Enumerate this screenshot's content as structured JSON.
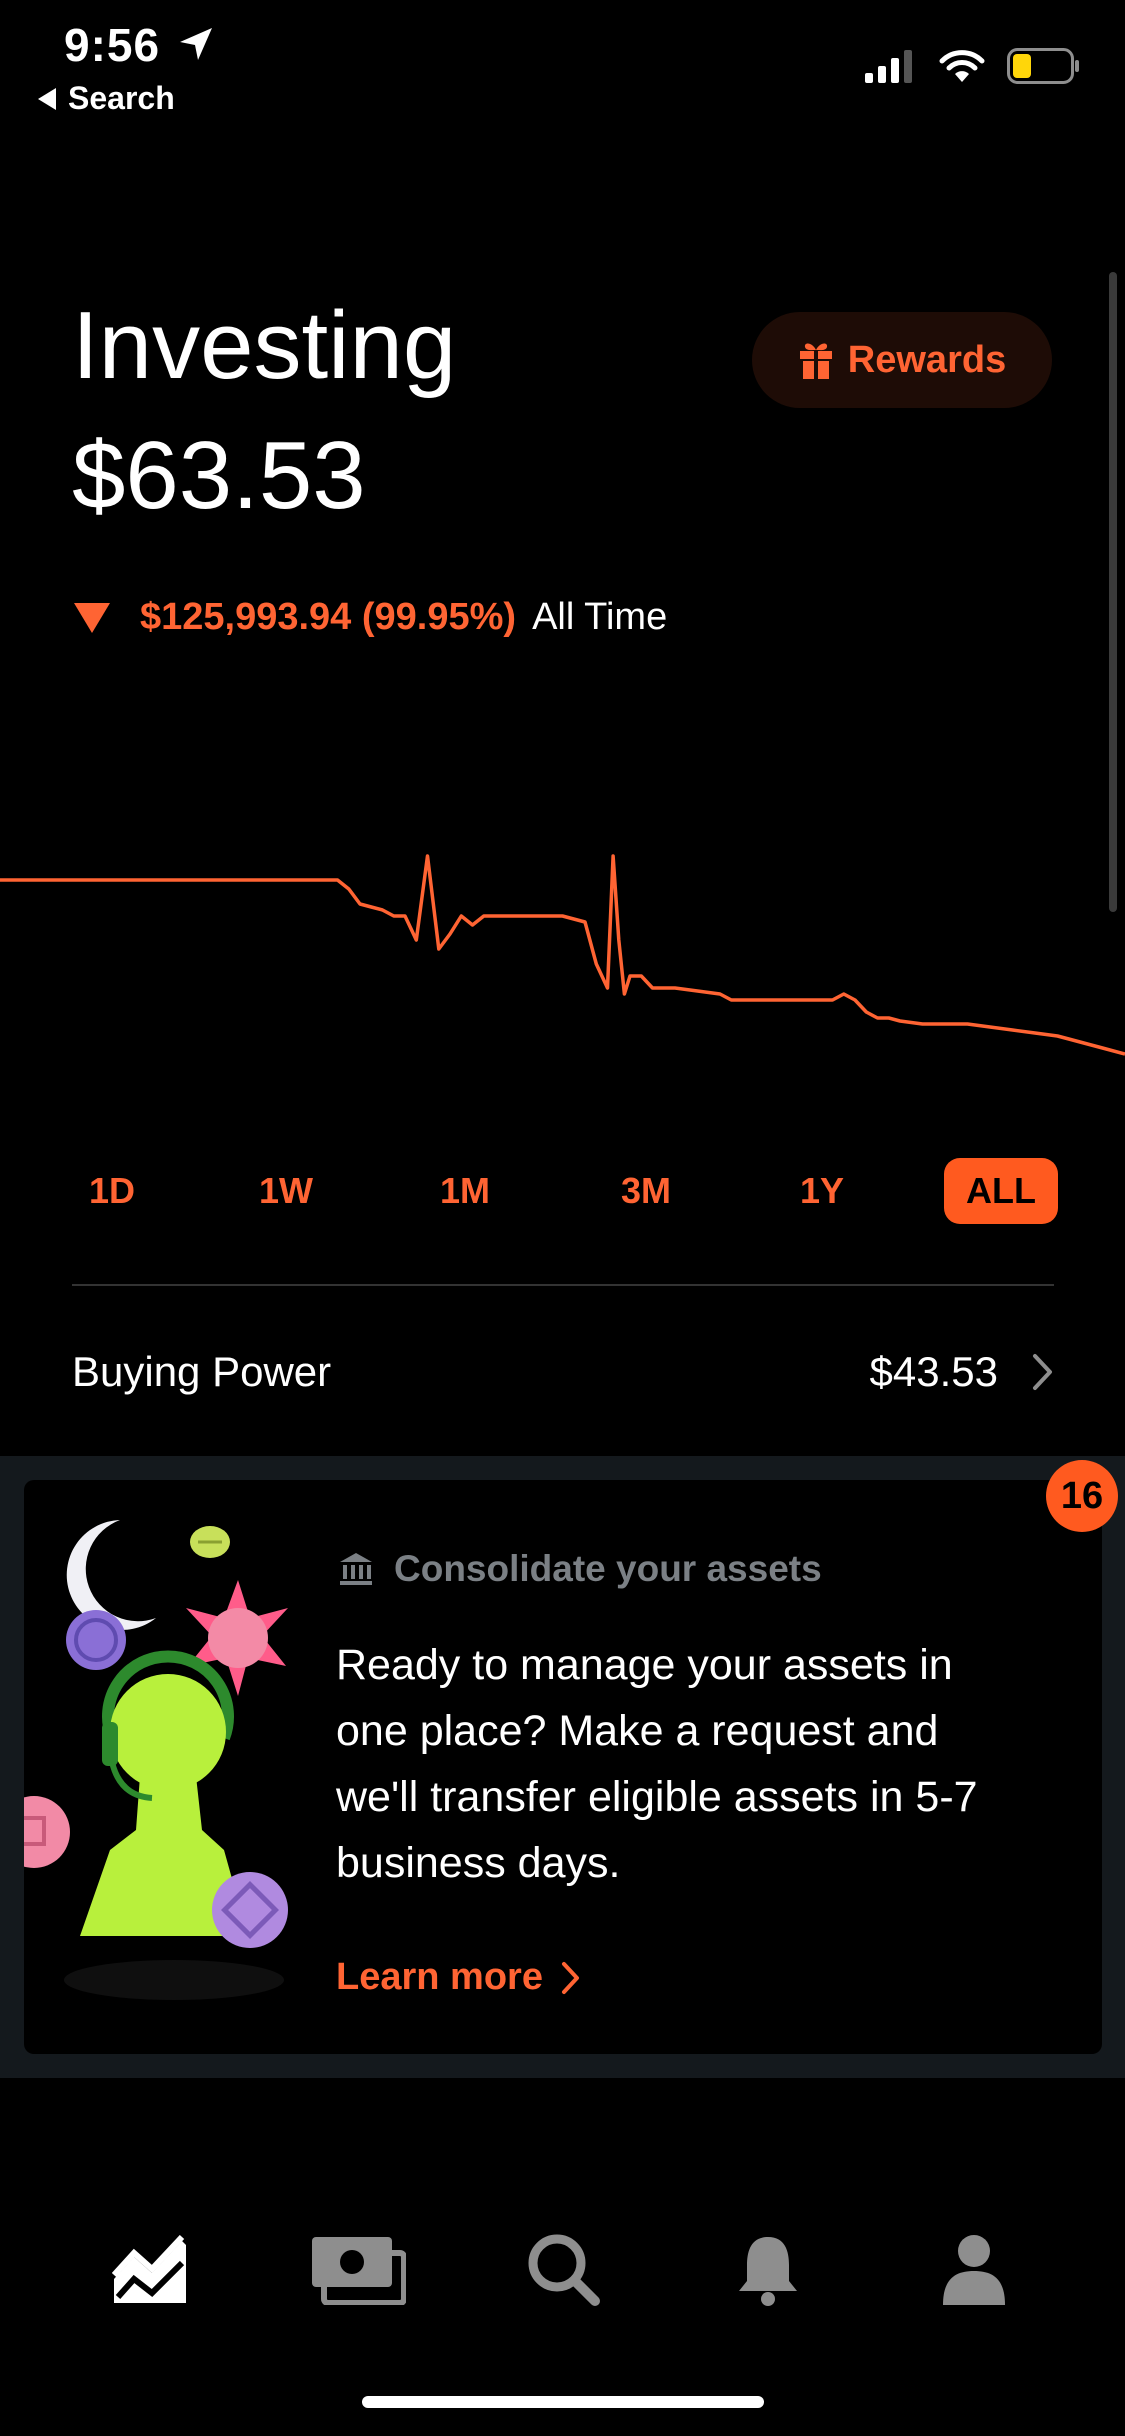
{
  "status_bar": {
    "time": "9:56",
    "back_label": "Search",
    "icons": [
      "location-arrow-icon",
      "cellular-signal-icon",
      "wifi-icon",
      "battery-icon"
    ]
  },
  "header": {
    "title": "Investing",
    "portfolio_value": "$63.53",
    "rewards_label": "Rewards",
    "change_value": "$125,993.94 (99.95%)",
    "change_period": "All Time",
    "change_direction": "down"
  },
  "colors": {
    "accent": "#ff6433",
    "active_tab_bg": "#ff5a1f",
    "background": "#000000",
    "card_band": "#14191d",
    "muted_text": "#7b8085"
  },
  "chart_data": {
    "type": "line",
    "title": "",
    "xlabel": "",
    "ylabel": "",
    "grid": false,
    "color": "#ff6433",
    "x": [
      0,
      2,
      4,
      6,
      8,
      10,
      12,
      14,
      16,
      18,
      20,
      22,
      24,
      26,
      28,
      30,
      31,
      32,
      33,
      34,
      35,
      36,
      37,
      38,
      39,
      40,
      41,
      42,
      43,
      44,
      45,
      46,
      47,
      48,
      50,
      52,
      53,
      54,
      54.5,
      55,
      55.5,
      56,
      57,
      58,
      59,
      60,
      62,
      64,
      65,
      66,
      67,
      68,
      70,
      72,
      74,
      75,
      76,
      77,
      78,
      79,
      80,
      82,
      84,
      86,
      88,
      90,
      92,
      94,
      95,
      96,
      98,
      100
    ],
    "y": [
      140,
      140,
      140,
      140,
      140,
      140,
      140,
      140,
      140,
      140,
      140,
      140,
      140,
      140,
      140,
      140,
      137,
      132,
      131,
      130,
      128,
      128,
      120,
      148,
      117,
      122,
      128,
      125,
      128,
      128,
      128,
      128,
      128,
      128,
      128,
      126,
      112,
      104,
      148,
      120,
      102,
      108,
      108,
      104,
      104,
      104,
      103,
      102,
      100,
      100,
      100,
      100,
      100,
      100,
      100,
      102,
      100,
      96,
      94,
      94,
      93,
      92,
      92,
      92,
      91,
      90,
      89,
      88,
      87,
      86,
      84,
      82
    ],
    "xlim": [
      0,
      100
    ],
    "ylim": [
      60,
      180
    ]
  },
  "range_tabs": [
    {
      "label": "1D",
      "active": false
    },
    {
      "label": "1W",
      "active": false
    },
    {
      "label": "1M",
      "active": false
    },
    {
      "label": "3M",
      "active": false
    },
    {
      "label": "1Y",
      "active": false
    },
    {
      "label": "ALL",
      "active": true
    }
  ],
  "buying_power": {
    "label": "Buying Power",
    "value": "$43.53"
  },
  "card": {
    "badge_count": "16",
    "eyebrow": "Consolidate your assets",
    "body": "Ready to manage your assets in one place? Make a request and we'll transfer eligible assets in 5-7 business days.",
    "link_label": "Learn more"
  },
  "tab_bar": {
    "items": [
      "investing-icon",
      "cash-icon",
      "search-icon",
      "notifications-icon",
      "account-icon"
    ],
    "active_index": 0
  }
}
